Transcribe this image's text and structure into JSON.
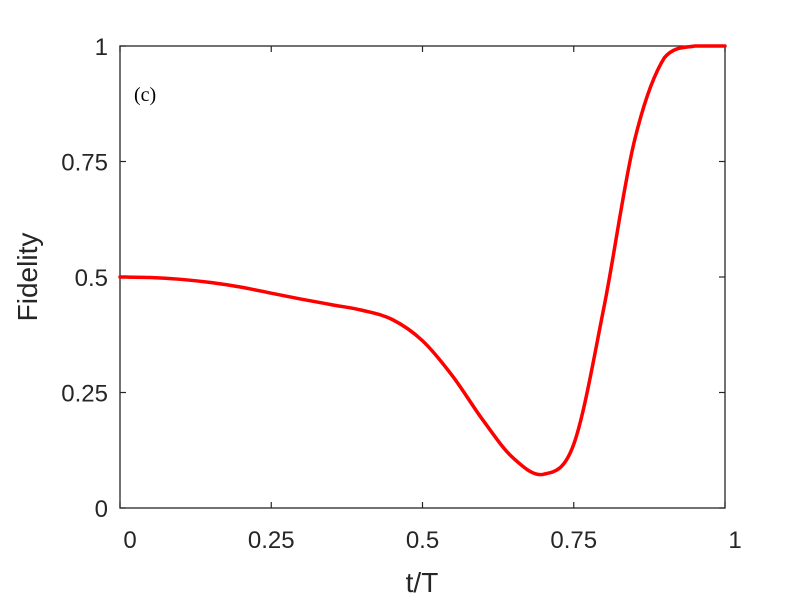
{
  "chart_data": {
    "type": "line",
    "panel_label": "(c)",
    "xlabel": "t/T",
    "ylabel": "Fidelity",
    "xlim": [
      0,
      1
    ],
    "ylim": [
      0,
      1
    ],
    "xticks": [
      0,
      0.25,
      0.5,
      0.75,
      1
    ],
    "yticks": [
      0,
      0.25,
      0.5,
      0.75,
      1
    ],
    "xtick_labels": [
      "0",
      "0.25",
      "0.5",
      "0.75",
      "1"
    ],
    "ytick_labels": [
      "0",
      "0.25",
      "0.5",
      "0.75",
      "1"
    ],
    "grid": false,
    "series": [
      {
        "color": "#ff0000",
        "x": [
          0,
          0.05,
          0.1,
          0.15,
          0.2,
          0.25,
          0.3,
          0.35,
          0.4,
          0.45,
          0.5,
          0.55,
          0.6,
          0.65,
          0.7,
          0.75,
          0.8,
          0.85,
          0.9,
          0.95,
          1
        ],
        "y": [
          0.5,
          0.499,
          0.495,
          0.488,
          0.478,
          0.465,
          0.452,
          0.44,
          0.428,
          0.408,
          0.362,
          0.285,
          0.19,
          0.108,
          0.073,
          0.138,
          0.435,
          0.793,
          0.975,
          1.0,
          1.0
        ]
      }
    ]
  }
}
